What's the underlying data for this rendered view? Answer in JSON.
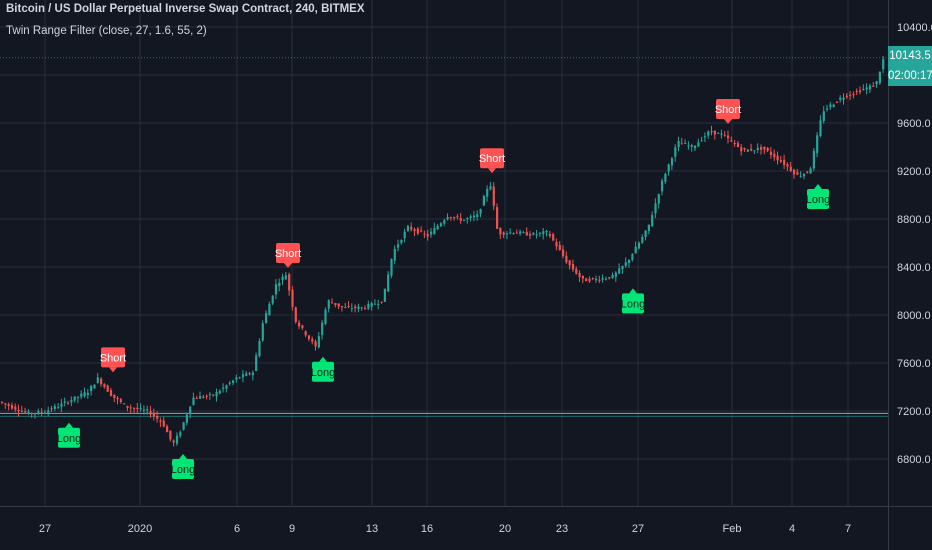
{
  "header": {
    "title": "Bitcoin / US Dollar Perpetual Inverse Swap Contract, 240, BITMEX",
    "indicator": "Twin Range Filter (close, 27, 1.6, 55, 2)"
  },
  "last_price": {
    "value": "10143.5",
    "countdown": "02:00:17"
  },
  "colors": {
    "background": "#131722",
    "grid": "#2a2e39",
    "up": "#26a69a",
    "down": "#ef5350",
    "long_label": "#00e676",
    "short_label": "#ff5252",
    "text": "#d1d4dc"
  },
  "chart_data": {
    "type": "candlestick",
    "title": "Bitcoin / US Dollar Perpetual Inverse Swap Contract, 240, BITMEX",
    "ylim": [
      6550,
      10550
    ],
    "y_ticks": [
      "6800.0",
      "7200.0",
      "7600.0",
      "8000.0",
      "8400.0",
      "8800.0",
      "9200.0",
      "9600.0",
      "10000.0",
      "10400.0"
    ],
    "x_ticks": [
      "27",
      "2020",
      "6",
      "9",
      "13",
      "16",
      "20",
      "23",
      "27",
      "Feb",
      "4",
      "7"
    ],
    "horizontal_line": 7180,
    "price_path": [
      [
        0,
        7280
      ],
      [
        15,
        7230
      ],
      [
        30,
        7180
      ],
      [
        45,
        7190
      ],
      [
        60,
        7240
      ],
      [
        75,
        7300
      ],
      [
        90,
        7360
      ],
      [
        100,
        7470
      ],
      [
        115,
        7320
      ],
      [
        130,
        7230
      ],
      [
        150,
        7200
      ],
      [
        165,
        7100
      ],
      [
        175,
        6920
      ],
      [
        183,
        7040
      ],
      [
        195,
        7310
      ],
      [
        215,
        7330
      ],
      [
        240,
        7480
      ],
      [
        255,
        7520
      ],
      [
        265,
        7930
      ],
      [
        278,
        8250
      ],
      [
        288,
        8340
      ],
      [
        298,
        7950
      ],
      [
        318,
        7730
      ],
      [
        330,
        8120
      ],
      [
        345,
        8060
      ],
      [
        365,
        8060
      ],
      [
        385,
        8120
      ],
      [
        395,
        8520
      ],
      [
        410,
        8730
      ],
      [
        430,
        8660
      ],
      [
        450,
        8830
      ],
      [
        465,
        8790
      ],
      [
        480,
        8830
      ],
      [
        492,
        9120
      ],
      [
        500,
        8680
      ],
      [
        515,
        8690
      ],
      [
        535,
        8670
      ],
      [
        550,
        8690
      ],
      [
        570,
        8430
      ],
      [
        585,
        8290
      ],
      [
        600,
        8300
      ],
      [
        615,
        8320
      ],
      [
        630,
        8450
      ],
      [
        650,
        8720
      ],
      [
        665,
        9130
      ],
      [
        680,
        9440
      ],
      [
        695,
        9400
      ],
      [
        712,
        9530
      ],
      [
        725,
        9500
      ],
      [
        745,
        9370
      ],
      [
        765,
        9390
      ],
      [
        785,
        9270
      ],
      [
        800,
        9160
      ],
      [
        812,
        9200
      ],
      [
        825,
        9700
      ],
      [
        845,
        9820
      ],
      [
        865,
        9880
      ],
      [
        878,
        9920
      ],
      [
        886,
        10143.5
      ]
    ],
    "signals": [
      {
        "type": "Short",
        "x": 113,
        "price": 7480
      },
      {
        "type": "Long",
        "x": 69,
        "price": 7160
      },
      {
        "type": "Long",
        "x": 183,
        "price": 6900
      },
      {
        "type": "Short",
        "x": 288,
        "price": 8350
      },
      {
        "type": "Long",
        "x": 323,
        "price": 7710
      },
      {
        "type": "Short",
        "x": 492,
        "price": 9140
      },
      {
        "type": "Long",
        "x": 633,
        "price": 8280
      },
      {
        "type": "Short",
        "x": 728,
        "price": 9550
      },
      {
        "type": "Long",
        "x": 818,
        "price": 9150
      }
    ]
  }
}
